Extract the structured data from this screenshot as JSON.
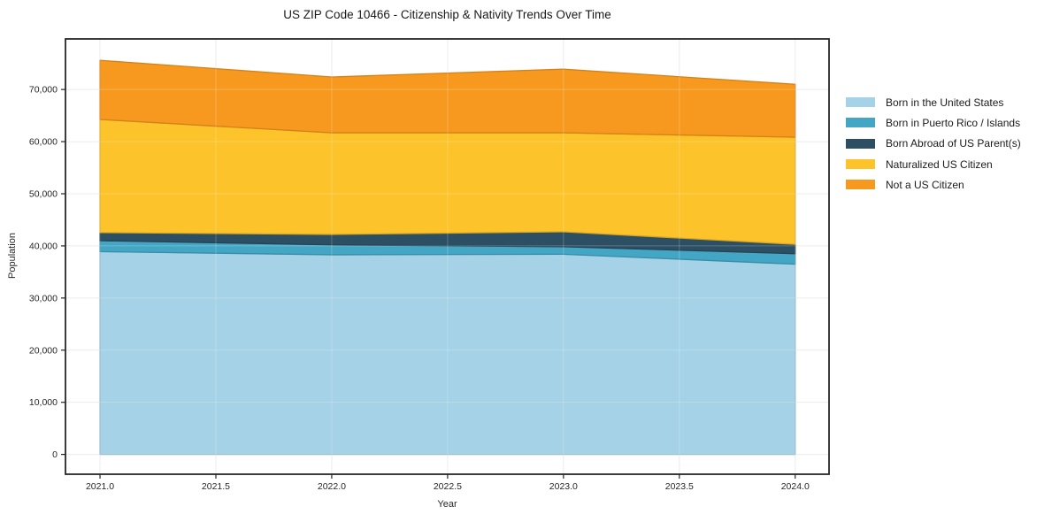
{
  "chart_data": {
    "type": "area",
    "stacked": true,
    "title": "US ZIP Code 10466 - Citizenship & Nativity Trends Over Time",
    "xlabel": "Year",
    "ylabel": "Population",
    "x": [
      2021,
      2022,
      2023,
      2024
    ],
    "series": [
      {
        "name": "Born in the United States",
        "color": "#a5d2e6",
        "values": [
          38900,
          38300,
          38400,
          36500
        ]
      },
      {
        "name": "Born in Puerto Rico / Islands",
        "color": "#43a6c4",
        "values": [
          2100,
          1900,
          1450,
          2000
        ]
      },
      {
        "name": "Born Abroad of US Parent(s)",
        "color": "#2d4f63",
        "values": [
          1550,
          2000,
          2850,
          1800
        ]
      },
      {
        "name": "Naturalized US Citizen",
        "color": "#fdc32b",
        "values": [
          21700,
          19500,
          19000,
          20550
        ]
      },
      {
        "name": "Not a US Citizen",
        "color": "#f8991f",
        "values": [
          11350,
          10700,
          12200,
          10150
        ]
      }
    ],
    "xticks": [
      2021.0,
      2021.5,
      2022.0,
      2022.5,
      2023.0,
      2023.5,
      2024.0
    ],
    "xtick_labels": [
      "2021.0",
      "2021.5",
      "2022.0",
      "2022.5",
      "2023.0",
      "2023.5",
      "2024.0"
    ],
    "yticks": [
      0,
      10000,
      20000,
      30000,
      40000,
      50000,
      60000,
      70000
    ],
    "ytick_labels": [
      "0",
      "10,000",
      "20,000",
      "30,000",
      "40,000",
      "50,000",
      "60,000",
      "70,000"
    ],
    "xlim": [
      2020.851,
      2024.146
    ],
    "ylim": [
      -3800,
      79700
    ],
    "grid": true,
    "legend_position": "right",
    "colors": {
      "frame": "#262626",
      "grid": "#e8e8e8",
      "tick_label": "#262626",
      "background": "#ffffff"
    }
  }
}
